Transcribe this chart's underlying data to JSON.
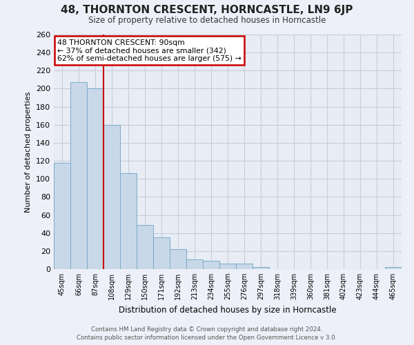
{
  "title": "48, THORNTON CRESCENT, HORNCASTLE, LN9 6JP",
  "subtitle": "Size of property relative to detached houses in Horncastle",
  "xlabel": "Distribution of detached houses by size in Horncastle",
  "ylabel": "Number of detached properties",
  "bin_labels": [
    "45sqm",
    "66sqm",
    "87sqm",
    "108sqm",
    "129sqm",
    "150sqm",
    "171sqm",
    "192sqm",
    "213sqm",
    "234sqm",
    "255sqm",
    "276sqm",
    "297sqm",
    "318sqm",
    "339sqm",
    "360sqm",
    "381sqm",
    "402sqm",
    "423sqm",
    "444sqm",
    "465sqm"
  ],
  "bar_values": [
    118,
    207,
    200,
    160,
    106,
    49,
    35,
    22,
    11,
    9,
    6,
    6,
    2,
    0,
    0,
    0,
    0,
    0,
    0,
    0,
    2
  ],
  "bar_color": "#c8d8e8",
  "bar_edgecolor": "#7aaac8",
  "vline_position": 2.5,
  "annotation_line1": "48 THORNTON CRESCENT: 90sqm",
  "annotation_line2": "← 37% of detached houses are smaller (342)",
  "annotation_line3": "62% of semi-detached houses are larger (575) →",
  "annotation_box_facecolor": "#ffffff",
  "annotation_box_edgecolor": "#cc0000",
  "vline_color": "#cc0000",
  "ylim": [
    0,
    260
  ],
  "yticks": [
    0,
    20,
    40,
    60,
    80,
    100,
    120,
    140,
    160,
    180,
    200,
    220,
    240,
    260
  ],
  "grid_color": "#c8ccd8",
  "background_color": "#edf0f8",
  "plot_bg_color": "#e8ecf5",
  "footer_line1": "Contains HM Land Registry data © Crown copyright and database right 2024.",
  "footer_line2": "Contains public sector information licensed under the Open Government Licence v 3.0."
}
